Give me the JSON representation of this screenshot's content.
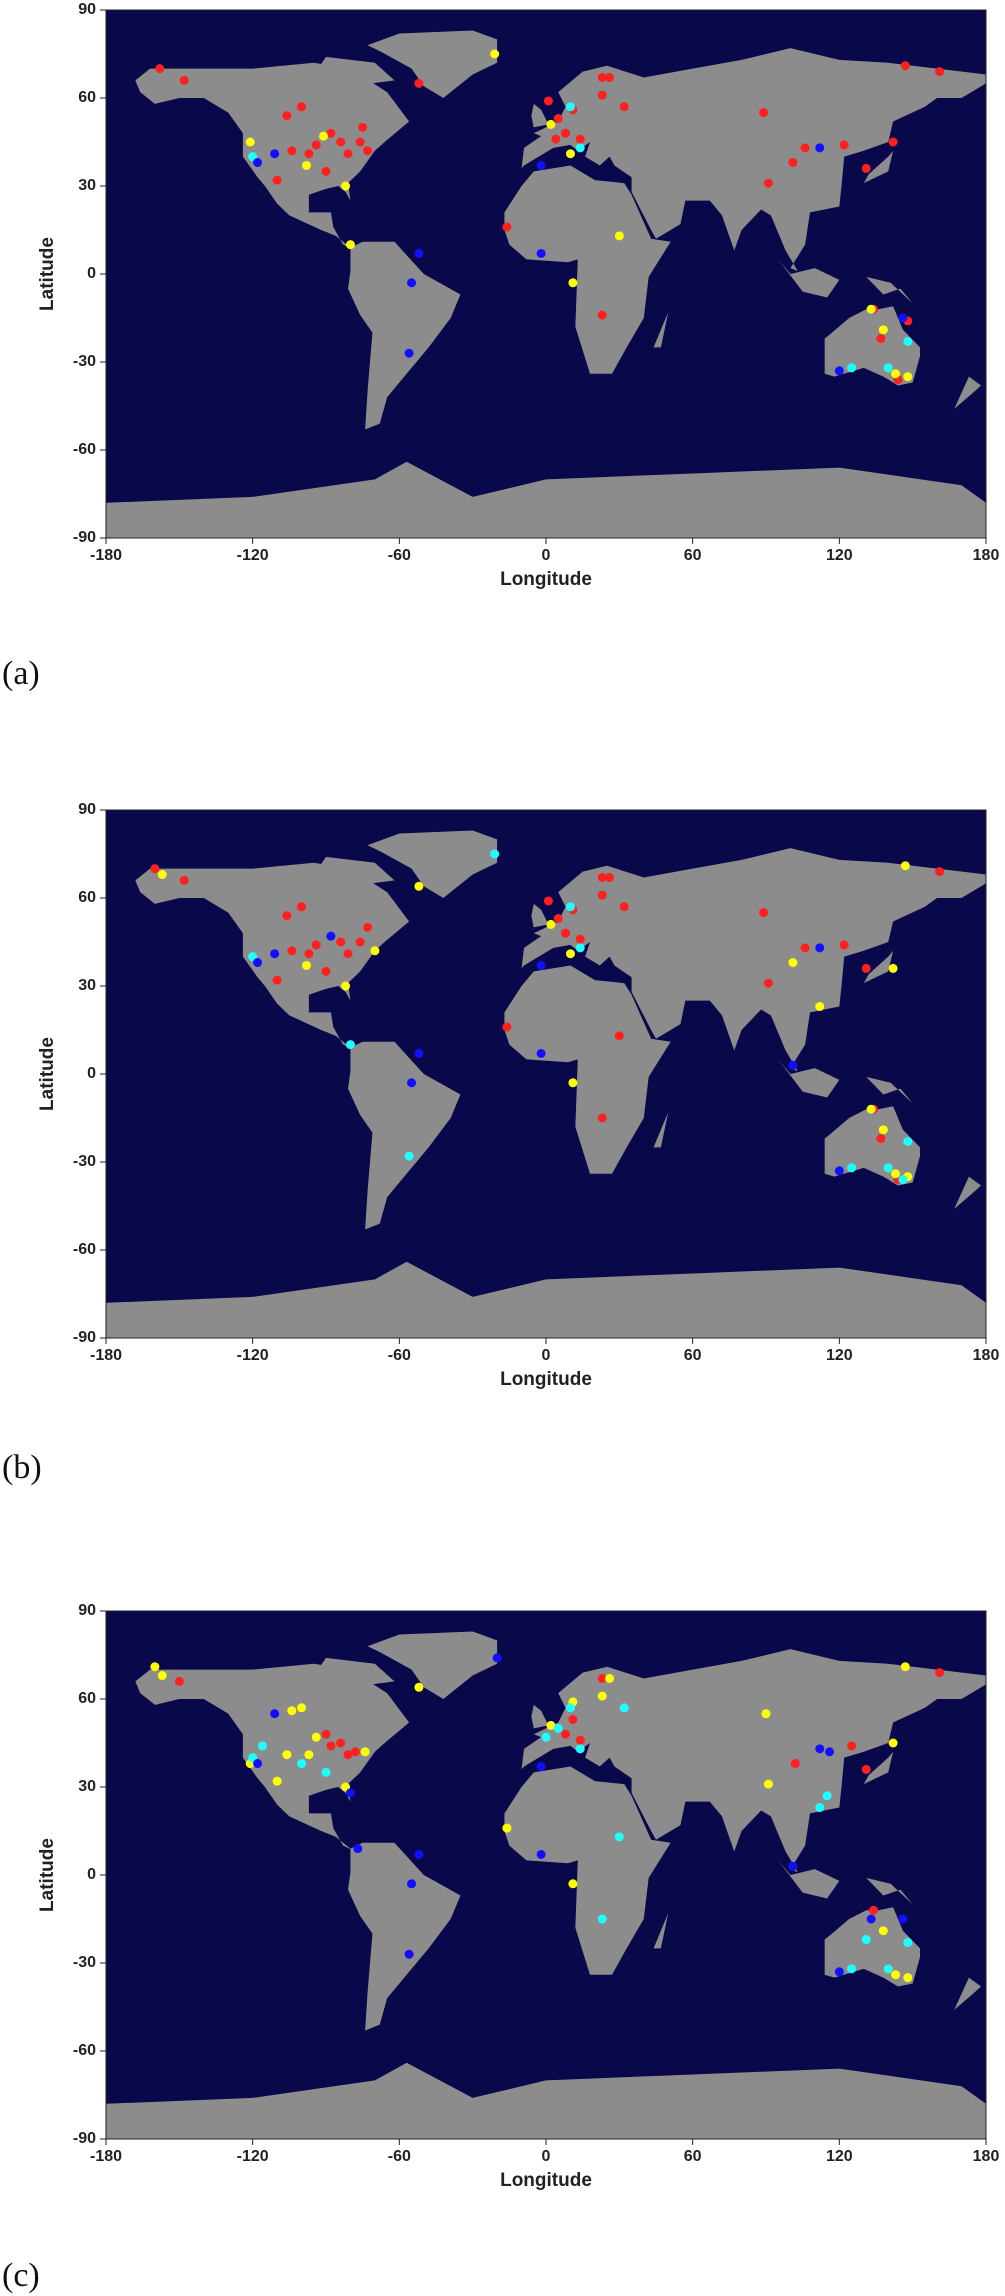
{
  "chart_data": [
    {
      "type": "scatter",
      "caption": "(a)",
      "xlabel": "Longitude",
      "ylabel": "Latitude",
      "xlim": [
        -180,
        180
      ],
      "ylim": [
        -90,
        90
      ],
      "xticks": [
        -180,
        -120,
        -60,
        0,
        60,
        120,
        180
      ],
      "yticks": [
        -90,
        -60,
        -30,
        0,
        30,
        60,
        90
      ],
      "series": [
        {
          "color": "#ff2020",
          "x": [
            -158,
            -148,
            -106,
            -100,
            -94,
            -88,
            -84,
            -81,
            -76,
            -97,
            -104,
            -110,
            -90,
            -75,
            -73,
            -52,
            -16,
            1,
            5,
            8,
            11,
            14,
            4,
            23,
            26,
            23,
            32,
            23,
            89,
            91,
            101,
            106,
            122,
            131,
            142,
            147,
            161,
            134,
            137,
            144,
            148
          ],
          "y": [
            70,
            66,
            54,
            57,
            44,
            48,
            45,
            41,
            45,
            41,
            42,
            32,
            35,
            50,
            42,
            65,
            16,
            59,
            53,
            48,
            56,
            46,
            46,
            67,
            67,
            61,
            57,
            -14,
            55,
            31,
            38,
            43,
            44,
            36,
            45,
            71,
            69,
            -12,
            -22,
            -36,
            -16
          ]
        },
        {
          "color": "#ffff00",
          "x": [
            -121,
            -91,
            -98,
            -82,
            -80,
            -21,
            2,
            10,
            11,
            30,
            138,
            143,
            148,
            133
          ],
          "y": [
            45,
            47,
            37,
            30,
            10,
            75,
            51,
            41,
            -3,
            13,
            -19,
            -34,
            -35,
            -12
          ]
        },
        {
          "color": "#20ffff",
          "x": [
            -120,
            10,
            14,
            125,
            148,
            140
          ],
          "y": [
            40,
            57,
            43,
            -32,
            -23,
            -32
          ]
        },
        {
          "color": "#1010ff",
          "x": [
            -111,
            -118,
            -52,
            -55,
            -56,
            -2,
            -2,
            112,
            120,
            146
          ],
          "y": [
            41,
            38,
            7,
            -3,
            -27,
            7,
            37,
            43,
            -33,
            -15
          ]
        }
      ]
    },
    {
      "type": "scatter",
      "caption": "(b)",
      "xlabel": "Longitude",
      "ylabel": "Latitude",
      "xlim": [
        -180,
        180
      ],
      "ylim": [
        -90,
        90
      ],
      "xticks": [
        -180,
        -120,
        -60,
        0,
        60,
        120,
        180
      ],
      "yticks": [
        -90,
        -60,
        -30,
        0,
        30,
        60,
        90
      ],
      "series": [
        {
          "color": "#ff2020",
          "x": [
            -160,
            -148,
            -106,
            -100,
            -94,
            -84,
            -81,
            -76,
            -97,
            -104,
            -110,
            -90,
            -73,
            -16,
            1,
            5,
            8,
            11,
            14,
            23,
            26,
            23,
            32,
            30,
            23,
            89,
            91,
            106,
            122,
            131,
            161,
            134,
            137,
            144
          ],
          "y": [
            70,
            66,
            54,
            57,
            44,
            45,
            41,
            45,
            41,
            42,
            32,
            35,
            50,
            16,
            59,
            53,
            48,
            56,
            46,
            67,
            67,
            61,
            57,
            13,
            -15,
            55,
            31,
            43,
            44,
            36,
            69,
            -12,
            -22,
            -36
          ]
        },
        {
          "color": "#ffff00",
          "x": [
            -157,
            -98,
            -82,
            -70,
            -52,
            2,
            10,
            11,
            101,
            112,
            142,
            147,
            138,
            143,
            148,
            133
          ],
          "y": [
            68,
            37,
            30,
            42,
            64,
            51,
            41,
            -3,
            38,
            23,
            36,
            71,
            -19,
            -34,
            -35,
            -12
          ]
        },
        {
          "color": "#20ffff",
          "x": [
            -120,
            -21,
            -80,
            10,
            14,
            -56,
            125,
            148,
            140,
            146
          ],
          "y": [
            40,
            75,
            10,
            57,
            43,
            -28,
            -32,
            -23,
            -32,
            -36
          ]
        },
        {
          "color": "#1010ff",
          "x": [
            -111,
            -118,
            -88,
            -52,
            -55,
            -2,
            -2,
            112,
            120,
            101
          ],
          "y": [
            41,
            38,
            47,
            7,
            -3,
            7,
            37,
            43,
            -33,
            3
          ]
        }
      ]
    },
    {
      "type": "scatter",
      "caption": "(c)",
      "xlabel": "Longitude",
      "ylabel": "Latitude",
      "xlim": [
        -180,
        180
      ],
      "ylim": [
        -90,
        90
      ],
      "xticks": [
        -180,
        -120,
        -60,
        0,
        60,
        120,
        180
      ],
      "yticks": [
        -90,
        -60,
        -30,
        0,
        30,
        60,
        90
      ],
      "series": [
        {
          "color": "#ff2020",
          "x": [
            -150,
            -88,
            -84,
            -81,
            -78,
            -90,
            8,
            11,
            14,
            23,
            102,
            125,
            131,
            161,
            134
          ],
          "y": [
            66,
            44,
            45,
            41,
            42,
            48,
            48,
            53,
            46,
            67,
            38,
            44,
            36,
            69,
            -12
          ]
        },
        {
          "color": "#ffff00",
          "x": [
            -160,
            -157,
            -104,
            -100,
            -106,
            -121,
            -97,
            -94,
            -110,
            -82,
            -74,
            -52,
            -16,
            2,
            11,
            23,
            26,
            11,
            90,
            91,
            142,
            147,
            138,
            143,
            148
          ],
          "y": [
            71,
            68,
            56,
            57,
            41,
            38,
            41,
            47,
            32,
            30,
            42,
            64,
            16,
            51,
            59,
            61,
            67,
            -3,
            55,
            31,
            45,
            71,
            -19,
            -34,
            -35
          ]
        },
        {
          "color": "#20ffff",
          "x": [
            -120,
            -100,
            -90,
            -116,
            0,
            5,
            10,
            14,
            32,
            30,
            23,
            112,
            115,
            131,
            125,
            140,
            148
          ],
          "y": [
            40,
            38,
            35,
            44,
            47,
            50,
            57,
            43,
            57,
            13,
            -15,
            23,
            27,
            -22,
            -32,
            -32,
            -23
          ]
        },
        {
          "color": "#1010ff",
          "x": [
            -111,
            -118,
            -80,
            -77,
            -52,
            -55,
            -56,
            -2,
            -2,
            -20,
            112,
            116,
            120,
            101,
            146,
            133
          ],
          "y": [
            55,
            38,
            28,
            9,
            7,
            -3,
            -27,
            7,
            37,
            74,
            43,
            42,
            -33,
            3,
            -15,
            -15
          ]
        }
      ]
    }
  ]
}
